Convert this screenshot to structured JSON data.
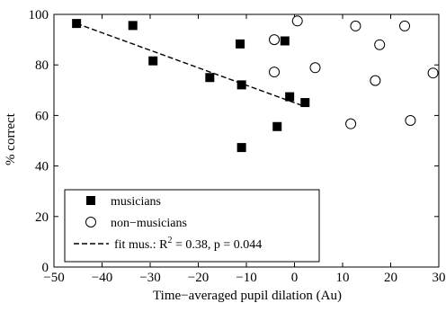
{
  "chart_data": {
    "type": "scatter",
    "xlabel": "Time−averaged pupil dilation (Au)",
    "ylabel": "% correct",
    "xlim": [
      -50,
      30
    ],
    "ylim": [
      0,
      100
    ],
    "x_ticks": [
      -50,
      -40,
      -30,
      -20,
      -10,
      0,
      10,
      20,
      30
    ],
    "x_tick_labels": [
      "−50",
      "−40",
      "−30",
      "−20",
      "−10",
      "0",
      "10",
      "20",
      "30"
    ],
    "y_ticks": [
      0,
      20,
      40,
      60,
      80,
      100
    ],
    "y_tick_labels": [
      "0",
      "20",
      "40",
      "60",
      "80",
      "100"
    ],
    "grid": false,
    "legend_position": "bottom-left",
    "series": [
      {
        "name": "musicians",
        "marker": "filled-square",
        "color": "#000000",
        "points": [
          [
            -45.3,
            96.4
          ],
          [
            -33.6,
            95.6
          ],
          [
            -29.4,
            81.6
          ],
          [
            -17.6,
            75.0
          ],
          [
            -11.3,
            88.3
          ],
          [
            -11.0,
            72.1
          ],
          [
            -11.0,
            47.3
          ],
          [
            -3.6,
            55.6
          ],
          [
            -2.0,
            89.5
          ],
          [
            -1.0,
            67.4
          ],
          [
            2.2,
            65.1
          ]
        ]
      },
      {
        "name": "non−musicians",
        "marker": "open-circle",
        "color": "#000000",
        "points": [
          [
            -4.2,
            90.0
          ],
          [
            0.6,
            97.4
          ],
          [
            12.7,
            95.4
          ],
          [
            17.7,
            88.0
          ],
          [
            22.9,
            95.4
          ],
          [
            -4.2,
            77.2
          ],
          [
            4.3,
            78.9
          ],
          [
            16.8,
            73.8
          ],
          [
            28.8,
            76.8
          ],
          [
            11.7,
            56.7
          ],
          [
            24.1,
            58.0
          ]
        ]
      }
    ],
    "fit_line": {
      "legend_prefix": "fit mus.: R",
      "legend_sup": "2",
      "legend_suffix": " = 0.38, p = 0.044",
      "style": "dashed",
      "color": "#000000",
      "x": [
        -45.3,
        2.2
      ],
      "y": [
        96.4,
        63.5
      ]
    }
  }
}
